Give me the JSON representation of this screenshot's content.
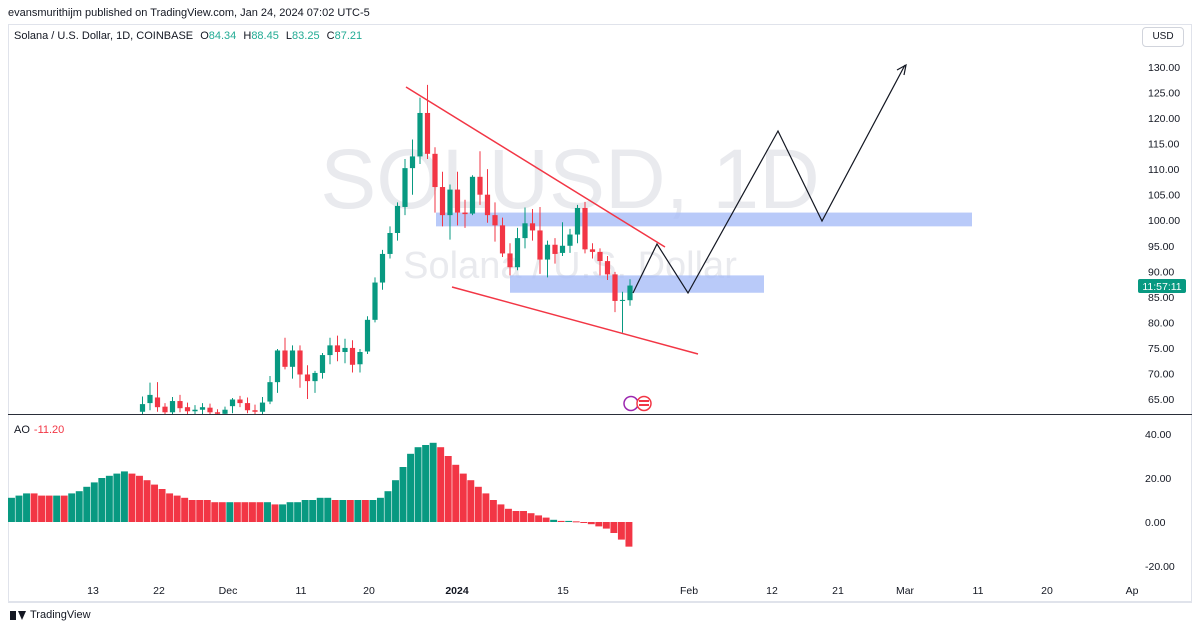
{
  "publisher": "evansmurithijm published on TradingView.com, Jan 24, 2024 07:02 UTC-5",
  "legend": {
    "symbol": "Solana / U.S. Dollar, 1D, COINBASE",
    "open_label": "O",
    "open": "84.34",
    "high_label": "H",
    "high": "88.45",
    "low_label": "L",
    "low": "83.25",
    "close_label": "C",
    "close": "87.21"
  },
  "currency_button": "USD",
  "watermark": {
    "line1": "SOLUSD, 1D",
    "line2": "Solana / U.S. Dollar"
  },
  "price_tag": "11:57:11",
  "ao": {
    "label": "AO",
    "value": "-11.20"
  },
  "footer": {
    "brand": "TradingView"
  },
  "colors": {
    "up": "#089981",
    "down": "#f23645",
    "zone": "#a7bdf7",
    "wedge": "#f23645",
    "projection": "#131722",
    "price_tag": "#089981"
  },
  "icons": [
    "tradingview-logo-icon",
    "event-flags-icon"
  ],
  "chart_data": [
    {
      "type": "candlestick",
      "title": "Solana / U.S. Dollar, 1D, COINBASE",
      "y_ticks": [
        "130.00",
        "125.00",
        "120.00",
        "115.00",
        "110.00",
        "105.00",
        "100.00",
        "95.00",
        "90.00",
        "85.00",
        "80.00",
        "75.00",
        "70.00",
        "65.00"
      ],
      "x_ticks": [
        "13",
        "22",
        "Dec",
        "11",
        "20",
        "2024",
        "15",
        "Feb",
        "12",
        "21",
        "Mar",
        "11",
        "20",
        "Ap"
      ],
      "ylim": [
        62,
        133
      ],
      "candles": [
        {
          "o": 62.5,
          "h": 65.5,
          "l": 61.8,
          "c": 64.0
        },
        {
          "o": 64.2,
          "h": 68.2,
          "l": 62.8,
          "c": 65.8
        },
        {
          "o": 65.3,
          "h": 68.3,
          "l": 62.5,
          "c": 63.4
        },
        {
          "o": 63.5,
          "h": 64.2,
          "l": 61.6,
          "c": 62.4
        },
        {
          "o": 62.4,
          "h": 65.4,
          "l": 61.8,
          "c": 64.6
        },
        {
          "o": 64.6,
          "h": 65.8,
          "l": 62.4,
          "c": 63.2
        },
        {
          "o": 63.4,
          "h": 64.3,
          "l": 61.9,
          "c": 62.6
        },
        {
          "o": 62.6,
          "h": 63.8,
          "l": 61.6,
          "c": 62.9
        },
        {
          "o": 62.9,
          "h": 64.2,
          "l": 61.7,
          "c": 63.4
        },
        {
          "o": 63.3,
          "h": 64.1,
          "l": 61.6,
          "c": 62.4
        },
        {
          "o": 62.4,
          "h": 63.0,
          "l": 61.5,
          "c": 62.1
        },
        {
          "o": 62.1,
          "h": 63.5,
          "l": 61.4,
          "c": 62.9
        },
        {
          "o": 63.6,
          "h": 65.2,
          "l": 62.2,
          "c": 64.9
        },
        {
          "o": 64.9,
          "h": 65.6,
          "l": 63.4,
          "c": 64.2
        },
        {
          "o": 64.2,
          "h": 65.3,
          "l": 62.2,
          "c": 62.8
        },
        {
          "o": 62.8,
          "h": 63.9,
          "l": 61.6,
          "c": 62.5
        },
        {
          "o": 62.5,
          "h": 65.4,
          "l": 62.0,
          "c": 64.3
        },
        {
          "o": 64.5,
          "h": 69.5,
          "l": 64.0,
          "c": 68.3
        },
        {
          "o": 68.3,
          "h": 74.8,
          "l": 66.2,
          "c": 74.5
        },
        {
          "o": 74.5,
          "h": 77.0,
          "l": 70.8,
          "c": 71.3
        },
        {
          "o": 71.3,
          "h": 75.5,
          "l": 69.0,
          "c": 74.5
        },
        {
          "o": 74.5,
          "h": 75.5,
          "l": 67.2,
          "c": 69.8
        },
        {
          "o": 69.8,
          "h": 71.6,
          "l": 65.0,
          "c": 68.5
        },
        {
          "o": 68.5,
          "h": 70.5,
          "l": 66.2,
          "c": 70.1
        },
        {
          "o": 70.1,
          "h": 74.0,
          "l": 69.0,
          "c": 73.6
        },
        {
          "o": 73.6,
          "h": 77.0,
          "l": 71.8,
          "c": 75.5
        },
        {
          "o": 75.5,
          "h": 77.4,
          "l": 72.4,
          "c": 74.2
        },
        {
          "o": 74.2,
          "h": 76.8,
          "l": 72.0,
          "c": 75.0
        },
        {
          "o": 75.0,
          "h": 76.5,
          "l": 70.2,
          "c": 71.7
        },
        {
          "o": 71.8,
          "h": 74.8,
          "l": 70.2,
          "c": 74.2
        },
        {
          "o": 74.3,
          "h": 81.2,
          "l": 73.8,
          "c": 80.5
        },
        {
          "o": 80.5,
          "h": 88.8,
          "l": 80.0,
          "c": 87.8
        },
        {
          "o": 87.8,
          "h": 94.2,
          "l": 86.4,
          "c": 93.4
        },
        {
          "o": 93.4,
          "h": 98.8,
          "l": 92.5,
          "c": 97.5
        },
        {
          "o": 97.5,
          "h": 103.5,
          "l": 96.0,
          "c": 102.8
        },
        {
          "o": 102.6,
          "h": 112.0,
          "l": 101.0,
          "c": 110.2
        },
        {
          "o": 110.2,
          "h": 115.8,
          "l": 105.0,
          "c": 112.5
        },
        {
          "o": 112.5,
          "h": 124.0,
          "l": 111.0,
          "c": 121.0
        },
        {
          "o": 121.0,
          "h": 126.5,
          "l": 112.0,
          "c": 113.0
        },
        {
          "o": 113.0,
          "h": 114.3,
          "l": 101.5,
          "c": 106.5
        },
        {
          "o": 106.5,
          "h": 109.5,
          "l": 98.8,
          "c": 101.0
        },
        {
          "o": 101.0,
          "h": 107.0,
          "l": 96.2,
          "c": 106.0
        },
        {
          "o": 106.0,
          "h": 109.5,
          "l": 99.0,
          "c": 101.5
        },
        {
          "o": 101.5,
          "h": 104.0,
          "l": 98.5,
          "c": 101.2
        },
        {
          "o": 101.3,
          "h": 108.8,
          "l": 101.0,
          "c": 108.5
        },
        {
          "o": 108.5,
          "h": 113.5,
          "l": 103.0,
          "c": 105.0
        },
        {
          "o": 105.0,
          "h": 110.0,
          "l": 99.5,
          "c": 101.0
        },
        {
          "o": 101.0,
          "h": 103.5,
          "l": 95.8,
          "c": 99.0
        },
        {
          "o": 99.0,
          "h": 100.5,
          "l": 92.8,
          "c": 93.5
        },
        {
          "o": 93.5,
          "h": 95.5,
          "l": 89.2,
          "c": 90.8
        },
        {
          "o": 90.8,
          "h": 98.5,
          "l": 90.2,
          "c": 96.5
        },
        {
          "o": 96.5,
          "h": 102.5,
          "l": 94.5,
          "c": 99.4
        },
        {
          "o": 99.4,
          "h": 102.2,
          "l": 96.0,
          "c": 98.0
        },
        {
          "o": 98.0,
          "h": 102.6,
          "l": 89.5,
          "c": 92.3
        },
        {
          "o": 92.3,
          "h": 96.0,
          "l": 88.8,
          "c": 95.2
        },
        {
          "o": 95.2,
          "h": 96.5,
          "l": 91.5,
          "c": 93.4
        },
        {
          "o": 93.6,
          "h": 99.6,
          "l": 93.0,
          "c": 95.0
        },
        {
          "o": 95.0,
          "h": 98.3,
          "l": 93.6,
          "c": 97.2
        },
        {
          "o": 97.2,
          "h": 103.0,
          "l": 95.5,
          "c": 102.4
        },
        {
          "o": 102.4,
          "h": 103.6,
          "l": 93.5,
          "c": 94.3
        },
        {
          "o": 94.3,
          "h": 95.5,
          "l": 92.5,
          "c": 93.8
        },
        {
          "o": 93.8,
          "h": 94.5,
          "l": 89.2,
          "c": 92.0
        },
        {
          "o": 92.0,
          "h": 93.0,
          "l": 88.3,
          "c": 89.4
        },
        {
          "o": 89.4,
          "h": 89.9,
          "l": 82.0,
          "c": 84.2
        },
        {
          "o": 84.2,
          "h": 86.0,
          "l": 78.0,
          "c": 84.4
        },
        {
          "o": 84.34,
          "h": 88.45,
          "l": 83.25,
          "c": 87.21
        }
      ],
      "zones": [
        {
          "top": 101.5,
          "bottom": 98.8
        },
        {
          "top": 89.2,
          "bottom": 85.8
        }
      ]
    },
    {
      "type": "bar",
      "title": "AO",
      "y_ticks": [
        "40.00",
        "20.00",
        "0.00",
        "-20.00"
      ],
      "ylim": [
        -20,
        40
      ],
      "values": [
        11,
        12,
        13,
        13,
        12,
        12,
        12,
        12,
        13,
        14,
        16,
        18,
        20,
        21,
        22,
        23,
        22,
        21,
        19,
        17,
        15,
        13,
        12,
        11,
        10,
        10,
        10,
        9,
        9,
        9,
        9,
        9,
        9,
        9,
        9,
        8,
        8,
        9,
        9,
        10,
        10,
        11,
        11,
        10,
        10,
        10,
        10,
        10,
        10,
        11,
        14,
        19,
        25,
        31,
        34,
        35,
        36,
        34,
        30,
        26,
        22,
        19,
        16,
        13,
        10,
        8,
        6,
        5,
        5,
        4,
        3,
        2,
        1,
        0.5,
        0.5,
        0.3,
        0,
        -1,
        -2,
        -3,
        -5,
        -8,
        -11.2
      ],
      "colors": [
        "g",
        "g",
        "g",
        "r",
        "r",
        "r",
        "g",
        "r",
        "g",
        "g",
        "g",
        "g",
        "g",
        "g",
        "g",
        "g",
        "r",
        "r",
        "r",
        "r",
        "r",
        "r",
        "r",
        "r",
        "r",
        "r",
        "r",
        "r",
        "r",
        "g",
        "r",
        "r",
        "r",
        "r",
        "g",
        "r",
        "g",
        "g",
        "g",
        "g",
        "g",
        "g",
        "g",
        "r",
        "g",
        "r",
        "g",
        "r",
        "g",
        "g",
        "g",
        "g",
        "g",
        "g",
        "g",
        "g",
        "g",
        "r",
        "r",
        "r",
        "r",
        "r",
        "r",
        "r",
        "r",
        "r",
        "r",
        "r",
        "r",
        "r",
        "r",
        "r",
        "g",
        "r",
        "g",
        "r",
        "r",
        "r",
        "r",
        "r",
        "r",
        "r",
        "r"
      ]
    }
  ]
}
